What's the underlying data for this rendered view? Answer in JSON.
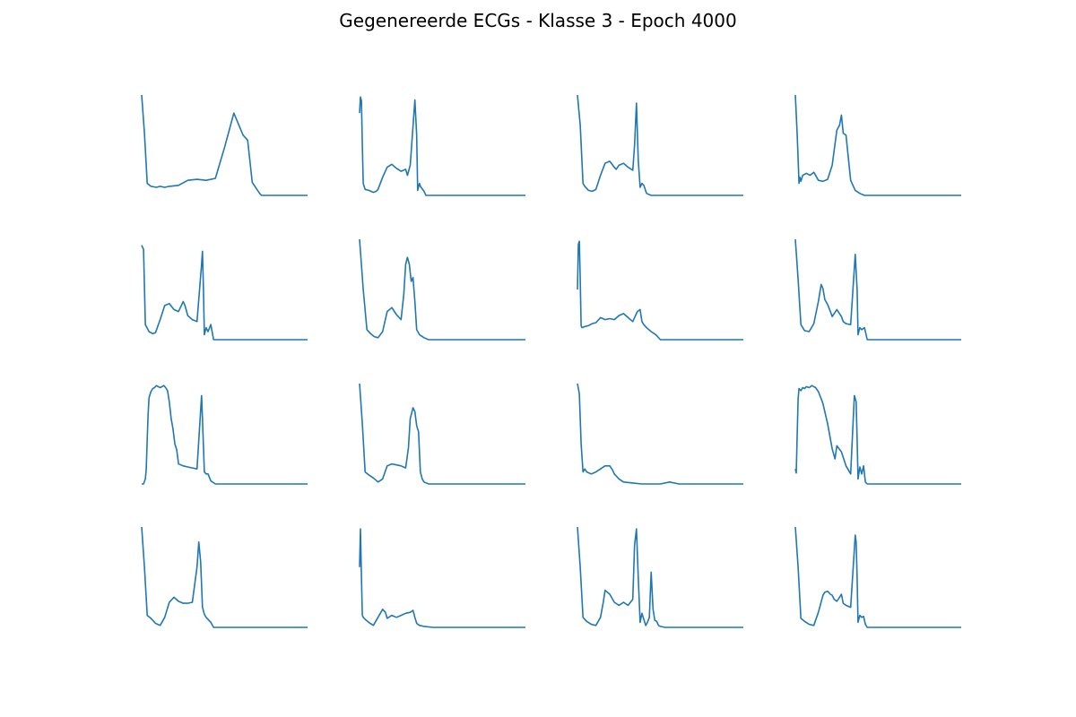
{
  "title": "Gegenereerde ECGs - Klasse 3 - Epoch 4000",
  "line_color": "#1f77b4",
  "chart_data": [
    {
      "type": "line",
      "x": [
        0,
        3,
        6,
        10,
        16,
        20,
        25,
        30,
        40,
        50,
        60,
        70,
        80,
        90,
        100,
        110,
        115,
        120,
        125,
        128,
        130,
        135,
        140,
        145,
        150,
        160,
        170,
        180
      ],
      "y": [
        1.0,
        0.62,
        0.12,
        0.09,
        0.08,
        0.09,
        0.08,
        0.09,
        0.1,
        0.15,
        0.16,
        0.15,
        0.17,
        0.48,
        0.82,
        0.6,
        0.55,
        0.13,
        0.06,
        0.02,
        0.0,
        0.0,
        0.0,
        0.0,
        0.0,
        0.0,
        0.0,
        0.0
      ]
    },
    {
      "type": "line",
      "x": [
        0,
        1,
        2,
        3,
        4,
        6,
        10,
        15,
        18,
        20,
        25,
        30,
        35,
        40,
        45,
        50,
        52,
        55,
        60,
        62,
        63,
        65,
        66,
        70,
        72,
        75,
        80,
        90,
        100,
        120,
        140,
        160,
        180
      ],
      "y": [
        0.82,
        0.98,
        0.94,
        0.5,
        0.12,
        0.06,
        0.05,
        0.03,
        0.04,
        0.06,
        0.18,
        0.28,
        0.31,
        0.27,
        0.24,
        0.26,
        0.2,
        0.3,
        0.95,
        0.6,
        0.05,
        0.12,
        0.09,
        0.04,
        0.0,
        0.0,
        0.0,
        0.0,
        0.0,
        0.0,
        0.0,
        0.0,
        0.0
      ]
    },
    {
      "type": "line",
      "x": [
        0,
        3,
        6,
        8,
        12,
        16,
        20,
        25,
        30,
        35,
        40,
        42,
        45,
        50,
        55,
        60,
        62,
        64,
        66,
        68,
        70,
        72,
        75,
        80,
        90,
        100,
        120,
        140,
        160,
        180
      ],
      "y": [
        1.0,
        0.7,
        0.12,
        0.09,
        0.05,
        0.04,
        0.06,
        0.2,
        0.32,
        0.34,
        0.28,
        0.26,
        0.3,
        0.32,
        0.28,
        0.25,
        0.5,
        0.92,
        0.35,
        0.08,
        0.12,
        0.1,
        0.02,
        0.0,
        0.0,
        0.0,
        0.0,
        0.0,
        0.0,
        0.0
      ]
    },
    {
      "type": "line",
      "x": [
        0,
        2,
        4,
        5,
        6,
        8,
        12,
        16,
        20,
        25,
        30,
        35,
        40,
        45,
        48,
        50,
        52,
        55,
        60,
        65,
        70,
        75,
        80,
        90,
        100,
        120,
        140,
        160,
        180
      ],
      "y": [
        1.0,
        0.6,
        0.12,
        0.18,
        0.14,
        0.2,
        0.22,
        0.2,
        0.23,
        0.15,
        0.14,
        0.16,
        0.3,
        0.65,
        0.7,
        0.8,
        0.62,
        0.6,
        0.15,
        0.05,
        0.02,
        0.0,
        0.0,
        0.0,
        0.0,
        0.0,
        0.0,
        0.0,
        0.0
      ]
    },
    {
      "type": "line",
      "x": [
        0,
        1,
        2,
        4,
        8,
        12,
        15,
        20,
        25,
        30,
        35,
        40,
        45,
        47,
        50,
        55,
        60,
        65,
        66,
        67,
        68,
        70,
        72,
        75,
        78,
        80,
        90,
        100,
        120,
        140,
        160,
        180
      ],
      "y": [
        0.94,
        0.92,
        0.9,
        0.15,
        0.08,
        0.06,
        0.07,
        0.2,
        0.34,
        0.36,
        0.3,
        0.28,
        0.38,
        0.34,
        0.24,
        0.2,
        0.18,
        0.75,
        0.88,
        0.5,
        0.05,
        0.12,
        0.08,
        0.15,
        0.0,
        0.0,
        0.0,
        0.0,
        0.0,
        0.0,
        0.0,
        0.0
      ]
    },
    {
      "type": "line",
      "x": [
        0,
        4,
        8,
        12,
        16,
        20,
        25,
        30,
        35,
        40,
        45,
        48,
        50,
        52,
        54,
        56,
        58,
        60,
        62,
        65,
        70,
        75,
        80,
        90,
        100,
        120,
        140,
        160,
        180
      ],
      "y": [
        1.0,
        0.5,
        0.1,
        0.06,
        0.03,
        0.02,
        0.08,
        0.28,
        0.32,
        0.25,
        0.2,
        0.45,
        0.75,
        0.82,
        0.75,
        0.58,
        0.62,
        0.38,
        0.1,
        0.05,
        0.02,
        0.0,
        0.0,
        0.0,
        0.0,
        0.0,
        0.0,
        0.0,
        0.0
      ]
    },
    {
      "type": "line",
      "x": [
        0,
        1,
        2,
        3,
        4,
        5,
        8,
        12,
        16,
        20,
        25,
        30,
        35,
        40,
        45,
        50,
        55,
        60,
        65,
        68,
        70,
        72,
        75,
        80,
        85,
        90,
        100,
        120,
        140,
        160,
        180
      ],
      "y": [
        0.5,
        0.95,
        0.98,
        0.6,
        0.14,
        0.12,
        0.13,
        0.14,
        0.16,
        0.17,
        0.22,
        0.2,
        0.21,
        0.2,
        0.24,
        0.26,
        0.22,
        0.18,
        0.28,
        0.3,
        0.18,
        0.15,
        0.12,
        0.08,
        0.05,
        0.0,
        0.0,
        0.0,
        0.0,
        0.0,
        0.0
      ]
    },
    {
      "type": "line",
      "x": [
        0,
        3,
        6,
        10,
        15,
        20,
        25,
        28,
        30,
        32,
        35,
        38,
        40,
        45,
        50,
        52,
        55,
        60,
        65,
        67,
        68,
        70,
        72,
        75,
        78,
        80,
        90,
        100,
        120,
        140,
        160,
        180
      ],
      "y": [
        1.0,
        0.6,
        0.15,
        0.09,
        0.08,
        0.16,
        0.38,
        0.55,
        0.51,
        0.4,
        0.35,
        0.28,
        0.23,
        0.3,
        0.23,
        0.18,
        0.16,
        0.15,
        0.85,
        0.5,
        0.05,
        0.12,
        0.1,
        0.12,
        0.0,
        0.0,
        0.0,
        0.0,
        0.0,
        0.0,
        0.0,
        0.0
      ]
    },
    {
      "type": "line",
      "x": [
        0,
        2,
        4,
        5,
        6,
        7,
        8,
        10,
        12,
        14,
        16,
        18,
        20,
        22,
        24,
        26,
        28,
        30,
        32,
        34,
        36,
        38,
        40,
        45,
        50,
        55,
        60,
        65,
        66,
        68,
        70,
        72,
        75,
        80,
        90,
        100,
        120,
        140,
        160,
        180
      ],
      "y": [
        0.0,
        0.0,
        0.05,
        0.15,
        0.45,
        0.7,
        0.86,
        0.92,
        0.95,
        0.96,
        0.98,
        0.97,
        0.96,
        0.97,
        0.98,
        0.96,
        0.93,
        0.82,
        0.65,
        0.55,
        0.4,
        0.34,
        0.2,
        0.18,
        0.17,
        0.16,
        0.15,
        0.88,
        0.65,
        0.12,
        0.1,
        0.1,
        0.03,
        0.0,
        0.0,
        0.0,
        0.0,
        0.0,
        0.0,
        0.0
      ]
    },
    {
      "type": "line",
      "x": [
        0,
        3,
        6,
        10,
        15,
        20,
        25,
        30,
        35,
        40,
        45,
        50,
        53,
        55,
        58,
        60,
        62,
        64,
        66,
        68,
        70,
        75,
        80,
        90,
        100,
        120,
        140,
        160,
        180
      ],
      "y": [
        1.0,
        0.6,
        0.12,
        0.09,
        0.06,
        0.02,
        0.05,
        0.18,
        0.2,
        0.19,
        0.18,
        0.16,
        0.36,
        0.65,
        0.76,
        0.72,
        0.58,
        0.52,
        0.12,
        0.05,
        0.02,
        0.0,
        0.0,
        0.0,
        0.0,
        0.0,
        0.0,
        0.0,
        0.0
      ]
    },
    {
      "type": "line",
      "x": [
        0,
        2,
        4,
        6,
        8,
        10,
        15,
        20,
        25,
        30,
        35,
        38,
        40,
        42,
        45,
        50,
        60,
        70,
        80,
        90,
        100,
        110,
        120,
        140,
        160,
        180
      ],
      "y": [
        1.0,
        0.9,
        0.4,
        0.12,
        0.15,
        0.12,
        0.1,
        0.12,
        0.15,
        0.18,
        0.18,
        0.14,
        0.1,
        0.08,
        0.05,
        0.02,
        0.01,
        0.0,
        0.0,
        0.0,
        0.02,
        0.0,
        0.0,
        0.0,
        0.0,
        0.0
      ]
    },
    {
      "type": "line",
      "x": [
        0,
        1,
        2,
        3,
        4,
        6,
        8,
        10,
        12,
        15,
        18,
        20,
        22,
        25,
        28,
        30,
        35,
        40,
        43,
        45,
        50,
        55,
        60,
        64,
        66,
        67,
        68,
        70,
        72,
        74,
        76,
        78,
        80,
        90,
        100,
        120,
        140,
        160,
        180
      ],
      "y": [
        0.15,
        0.11,
        0.5,
        0.85,
        0.95,
        0.93,
        0.96,
        0.95,
        0.97,
        0.96,
        0.98,
        0.97,
        0.96,
        0.92,
        0.85,
        0.8,
        0.6,
        0.35,
        0.25,
        0.38,
        0.32,
        0.18,
        0.1,
        0.88,
        0.82,
        0.45,
        0.05,
        0.17,
        0.1,
        0.18,
        0.02,
        0.0,
        0.0,
        0.0,
        0.0,
        0.0,
        0.0,
        0.0,
        0.0
      ]
    },
    {
      "type": "line",
      "x": [
        0,
        3,
        6,
        10,
        15,
        20,
        25,
        30,
        35,
        40,
        45,
        50,
        55,
        60,
        62,
        64,
        66,
        68,
        70,
        75,
        78,
        80,
        90,
        100,
        120,
        140,
        160,
        180
      ],
      "y": [
        1.0,
        0.6,
        0.12,
        0.09,
        0.04,
        0.02,
        0.1,
        0.25,
        0.3,
        0.26,
        0.24,
        0.24,
        0.25,
        0.6,
        0.85,
        0.65,
        0.2,
        0.13,
        0.1,
        0.05,
        0.0,
        0.0,
        0.0,
        0.0,
        0.0,
        0.0,
        0.0,
        0.0
      ]
    },
    {
      "type": "line",
      "x": [
        0,
        1,
        2,
        3,
        4,
        6,
        10,
        15,
        20,
        25,
        28,
        30,
        35,
        40,
        45,
        50,
        55,
        58,
        60,
        62,
        65,
        70,
        80,
        90,
        100,
        120,
        140,
        160,
        180
      ],
      "y": [
        0.6,
        0.98,
        0.5,
        0.12,
        0.1,
        0.08,
        0.05,
        0.02,
        0.1,
        0.18,
        0.15,
        0.09,
        0.12,
        0.1,
        0.12,
        0.14,
        0.15,
        0.17,
        0.1,
        0.04,
        0.02,
        0.01,
        0.0,
        0.0,
        0.0,
        0.0,
        0.0,
        0.0,
        0.0
      ]
    },
    {
      "type": "line",
      "x": [
        0,
        3,
        6,
        10,
        15,
        20,
        25,
        28,
        30,
        35,
        40,
        45,
        50,
        55,
        60,
        62,
        64,
        66,
        68,
        70,
        72,
        74,
        76,
        78,
        80,
        82,
        84,
        86,
        88,
        90,
        95,
        100,
        120,
        140,
        160,
        180
      ],
      "y": [
        1.0,
        0.6,
        0.1,
        0.06,
        0.03,
        0.02,
        0.1,
        0.25,
        0.37,
        0.33,
        0.25,
        0.22,
        0.25,
        0.22,
        0.28,
        0.82,
        0.98,
        0.5,
        0.05,
        0.14,
        0.08,
        0.02,
        0.05,
        0.1,
        0.55,
        0.18,
        0.07,
        0.06,
        0.02,
        0.01,
        0.0,
        0.0,
        0.0,
        0.0,
        0.0,
        0.0
      ]
    },
    {
      "type": "line",
      "x": [
        0,
        3,
        6,
        10,
        15,
        20,
        25,
        30,
        32,
        35,
        38,
        40,
        42,
        45,
        48,
        50,
        52,
        55,
        60,
        65,
        66,
        67,
        68,
        70,
        72,
        74,
        76,
        78,
        80,
        90,
        100,
        120,
        140,
        160,
        180
      ],
      "y": [
        1.0,
        0.6,
        0.09,
        0.06,
        0.03,
        0.02,
        0.15,
        0.32,
        0.35,
        0.36,
        0.33,
        0.32,
        0.28,
        0.26,
        0.3,
        0.33,
        0.24,
        0.22,
        0.2,
        0.92,
        0.85,
        0.5,
        0.05,
        0.12,
        0.1,
        0.11,
        0.03,
        0.0,
        0.0,
        0.0,
        0.0,
        0.0,
        0.0,
        0.0,
        0.0
      ]
    }
  ]
}
